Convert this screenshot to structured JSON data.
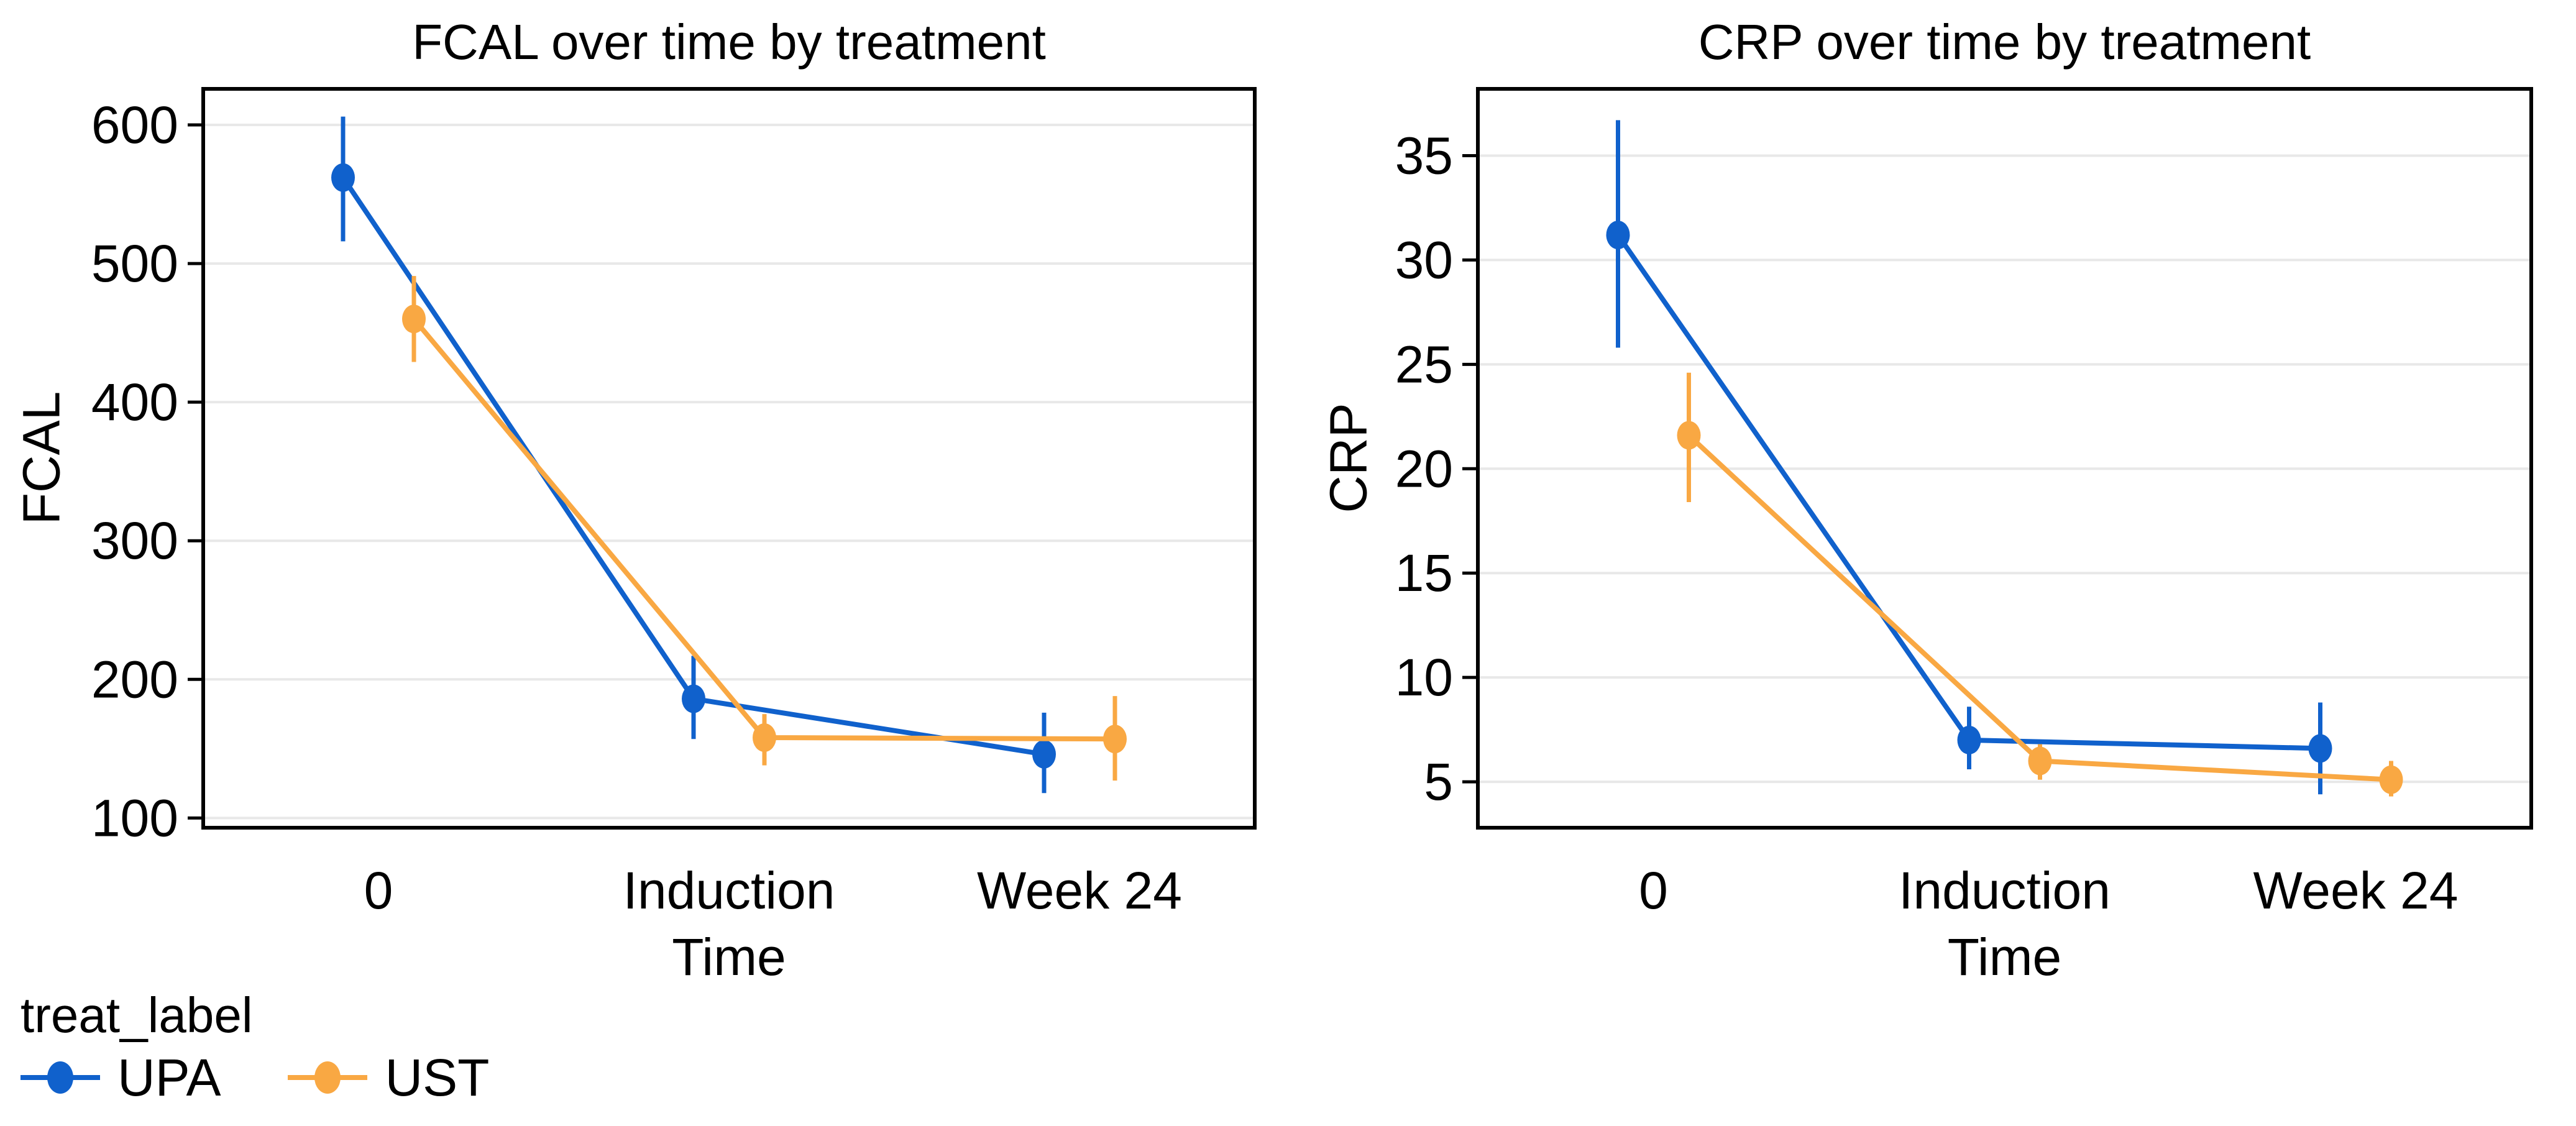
{
  "style": {
    "background": "#ffffff",
    "grid_color": "#e8e8e8",
    "axis_color": "#000000",
    "text_color": "#000000",
    "series_blue": "#1061cc",
    "series_orange": "#f9a843"
  },
  "chart_data": [
    {
      "type": "line",
      "title": "FCAL over time by treatment",
      "xlabel": "Time",
      "ylabel": "FCAL",
      "categories": [
        "0",
        "Induction",
        "Week 24"
      ],
      "yticks": [
        100,
        200,
        300,
        400,
        500,
        600
      ],
      "ylim": [
        93,
        626
      ],
      "grid": true,
      "error_bars": true,
      "series": [
        {
          "name": "UPA",
          "color": "#1061cc",
          "values": [
            562,
            186,
            146
          ],
          "ci_low": [
            516,
            157,
            118
          ],
          "ci_high": [
            606,
            217,
            176
          ]
        },
        {
          "name": "UST",
          "color": "#f9a843",
          "values": [
            460,
            158,
            157
          ],
          "ci_low": [
            429,
            138,
            127
          ],
          "ci_high": [
            491,
            175,
            188
          ]
        }
      ]
    },
    {
      "type": "line",
      "title": "CRP over time by treatment",
      "xlabel": "Time",
      "ylabel": "CRP",
      "categories": [
        "0",
        "Induction",
        "Week 24"
      ],
      "yticks": [
        5,
        10,
        15,
        20,
        25,
        30,
        35
      ],
      "ylim": [
        2.8,
        38.2
      ],
      "grid": true,
      "error_bars": true,
      "series": [
        {
          "name": "UPA",
          "color": "#1061cc",
          "values": [
            31.2,
            7.0,
            6.6
          ],
          "ci_low": [
            25.8,
            5.6,
            4.4
          ],
          "ci_high": [
            36.7,
            8.6,
            8.8
          ]
        },
        {
          "name": "UST",
          "color": "#f9a843",
          "values": [
            21.6,
            6.0,
            5.1
          ],
          "ci_low": [
            18.4,
            5.1,
            4.3
          ],
          "ci_high": [
            24.6,
            6.8,
            6.0
          ]
        }
      ]
    }
  ],
  "legend": {
    "title": "treat_label",
    "position": "bottom-left",
    "entries": [
      {
        "label": "UPA",
        "color": "#1061cc"
      },
      {
        "label": "UST",
        "color": "#f9a843"
      }
    ]
  }
}
